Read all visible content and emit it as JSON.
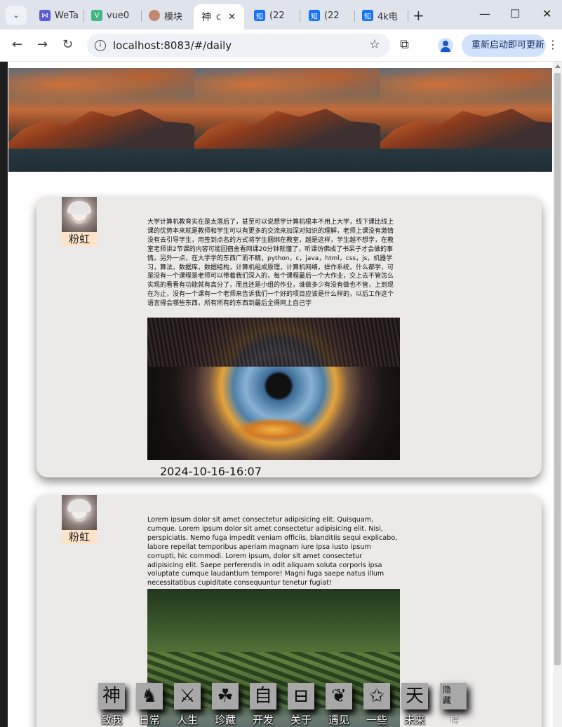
{
  "browser": {
    "tabs": [
      {
        "label": "WeTa",
        "favicon": "wetab-icon",
        "color": "#5b5bd6"
      },
      {
        "label": "vue0",
        "favicon": "vue-icon",
        "color": "#41b883"
      },
      {
        "label": "模块",
        "favicon": "avatar-icon",
        "color": "#c08a70"
      },
      {
        "label": "c",
        "favicon": "shen-icon",
        "color": "#222222",
        "active": true
      },
      {
        "label": "(22",
        "favicon": "zhihu-icon",
        "color": "#1772f6"
      },
      {
        "label": "(22",
        "favicon": "zhihu-icon",
        "color": "#1772f6"
      },
      {
        "label": "4k电",
        "favicon": "zhihu-icon",
        "color": "#1772f6"
      }
    ],
    "new_tab": "+",
    "window_controls": {
      "minimize": "—",
      "maximize": "☐",
      "close": "✕"
    },
    "url": "localhost:8083/#/daily",
    "update_button": "重新启动即可更新"
  },
  "feed": {
    "posts": [
      {
        "author": "粉虹",
        "text": "大学计算机教育实在是太落后了，甚至可以说想学计算机根本不用上大学，线下课比线上课的优势本来就是教师和学生可以有更多的交流来加深对知识的理解，老师上课没有激情没有去引导学生，用签到点名的方式将学生捆绑在教室，越是这样，学生越不想学，在教室老师讲2节课的内容可能回宿舍看网课20分钟就懂了，听课仿佛成了书呆子才会做的事情。另外一点，在大学学的东西广而不精，python，c，java，html，css，js，机器学习，算法，数据库，数据结构，计算机组成原理，计算机网络，操作系统，什么都学，可是没有一个课程是老师可以带着我们深入的，每个课程最后一个大作业，交上去不管怎么实现的看看有功能就有高分了，而且还是小组的作业，谁做多少有没有做也不管，上到现在为止，没有一个课有一个老师来告诉我们一个好的项目应该是什么样的，以后工作这个语言得会哪些东西，所有所有的东西到最后全得网上自己学",
        "date": "2024-10-16-16:07"
      },
      {
        "author": "粉虹",
        "text": "Lorem ipsum dolor sit amet consectetur adipisicing elit. Quisquam, cumque. Lorem ipsum dolor sit amet consectetur adipisicing elit. Nisi, perspiciatis. Nemo fuga impedit veniam officiis, blanditiis sequi explicabo, labore repellat temporibus aperiam magnam iure ipsa iusto ipsum corrupti, hic commodi. Lorem ipsum, dolor sit amet consectetur adipisicing elit. Saepe perferendis in odit aliquam soluta corporis ipsa voluptate cumque laudantium tempore! Magni fuga saepe natus illum necessitatibus cupiditate consequuntur tenetur fugiat!"
      }
    ]
  },
  "bottom_nav": {
    "items": [
      {
        "glyph": "神",
        "label": "致我",
        "icon": "shen-icon"
      },
      {
        "glyph": "♞",
        "label": "日常",
        "icon": "figure-icon"
      },
      {
        "glyph": "⚔",
        "label": "人生",
        "icon": "sword-icon"
      },
      {
        "glyph": "☘",
        "label": "珍藏",
        "icon": "clover-icon"
      },
      {
        "glyph": "自",
        "label": "开发",
        "icon": "zi-icon"
      },
      {
        "glyph": "⊟",
        "label": "关于",
        "icon": "window-icon"
      },
      {
        "glyph": "❦",
        "label": "遇见",
        "icon": "meet-icon"
      },
      {
        "glyph": "✩",
        "label": "一些",
        "icon": "star-icon"
      },
      {
        "glyph": "天",
        "label": "未来",
        "icon": "tian-icon"
      }
    ],
    "hide": {
      "line1": "隐",
      "line2": "藏",
      "extra": "時"
    }
  }
}
